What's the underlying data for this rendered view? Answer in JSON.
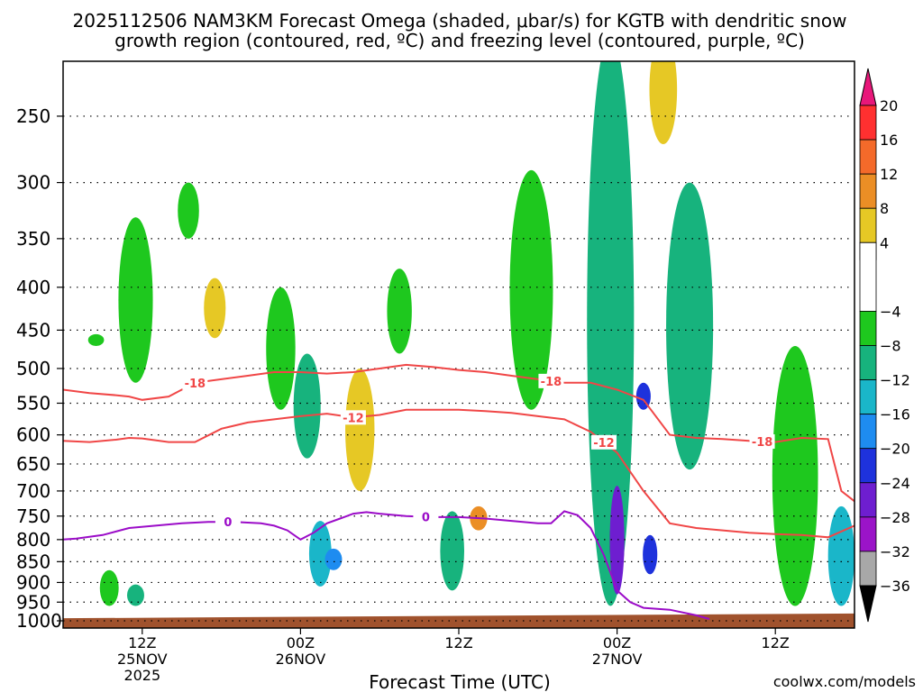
{
  "header": {
    "title_line1": "2025112506 NAM3KM Forecast Omega (shaded, μbar/s) for KGTB with dendritic snow",
    "title_line2": "growth region (contoured, red, ºC) and freezing level (contoured, purple, ºC)"
  },
  "footer": {
    "xlabel": "Forecast Time (UTC)",
    "credit": "coolwx.com/models",
    "credit_color": "#dc143c"
  },
  "chart_data": {
    "type": "heatmap",
    "title": "2025112506 NAM3KM Forecast Omega (shaded, μbar/s) for KGTB with dendritic snow growth region (contoured, red, ºC) and freezing level (contoured, purple, ºC)",
    "xlabel": "Forecast Time (UTC)",
    "ylabel": "",
    "x_start_hour": 0,
    "x_end_hour": 60,
    "y_axis_pressure_hPa": [
      250,
      300,
      350,
      400,
      450,
      500,
      550,
      600,
      650,
      700,
      750,
      800,
      850,
      900,
      950,
      1000
    ],
    "y_range_hPa": [
      1020,
      215
    ],
    "grid": "dotted horizontal",
    "x_ticks": [
      {
        "hour": 6,
        "line1": "12Z",
        "line2": "25NOV",
        "line3": "2025"
      },
      {
        "hour": 18,
        "line1": "00Z",
        "line2": "26NOV",
        "line3": ""
      },
      {
        "hour": 30,
        "line1": "12Z",
        "line2": "",
        "line3": ""
      },
      {
        "hour": 42,
        "line1": "00Z",
        "line2": "27NOV",
        "line3": ""
      },
      {
        "hour": 54,
        "line1": "12Z",
        "line2": "",
        "line3": ""
      }
    ],
    "colorbar": {
      "labels": [
        "20",
        "16",
        "12",
        "8",
        "4",
        "−4",
        "−8",
        "−12",
        "−16",
        "−20",
        "−24",
        "−28",
        "−32",
        "−36"
      ],
      "bins": [
        {
          "lo": 20,
          "hi": 24,
          "color": "#e8177a"
        },
        {
          "lo": 16,
          "hi": 20,
          "color": "#ff3030"
        },
        {
          "lo": 12,
          "hi": 16,
          "color": "#f46a2a"
        },
        {
          "lo": 8,
          "hi": 12,
          "color": "#eb8e25"
        },
        {
          "lo": 4,
          "hi": 8,
          "color": "#e6c825"
        },
        {
          "lo": 2,
          "hi": 4,
          "color": "#eae12f"
        },
        {
          "lo": -4,
          "hi": 4,
          "color": "#ffffff"
        },
        {
          "lo": -8,
          "hi": -4,
          "color": "#1ec81e"
        },
        {
          "lo": -12,
          "hi": -8,
          "color": "#17b37d"
        },
        {
          "lo": -16,
          "hi": -12,
          "color": "#1ab6c9"
        },
        {
          "lo": -20,
          "hi": -16,
          "color": "#1e8cf0"
        },
        {
          "lo": -24,
          "hi": -20,
          "color": "#1e32dc"
        },
        {
          "lo": -28,
          "hi": -24,
          "color": "#6e1ed0"
        },
        {
          "lo": -32,
          "hi": -28,
          "color": "#9b14c8"
        },
        {
          "lo": -36,
          "hi": -32,
          "color": "#a8a8a8"
        },
        {
          "lo": -40,
          "hi": -36,
          "color": "#000000"
        }
      ]
    },
    "omega_features": [
      {
        "hour": 2.5,
        "p_top": 455,
        "p_bot": 470,
        "value": -6
      },
      {
        "hour": 3.5,
        "p_top": 870,
        "p_bot": 960,
        "value": -6
      },
      {
        "hour": 5.5,
        "p_top": 330,
        "p_bot": 520,
        "value": -6
      },
      {
        "hour": 5.5,
        "p_top": 905,
        "p_bot": 960,
        "value": -9
      },
      {
        "hour": 9.5,
        "p_top": 300,
        "p_bot": 350,
        "value": -6
      },
      {
        "hour": 11.5,
        "p_top": 390,
        "p_bot": 460,
        "value": 5
      },
      {
        "hour": 16.5,
        "p_top": 400,
        "p_bot": 560,
        "value": -6
      },
      {
        "hour": 18.5,
        "p_top": 480,
        "p_bot": 640,
        "value": -10
      },
      {
        "hour": 19.5,
        "p_top": 760,
        "p_bot": 910,
        "value": -14
      },
      {
        "hour": 20.5,
        "p_top": 820,
        "p_bot": 870,
        "value": -18
      },
      {
        "hour": 22.5,
        "p_top": 500,
        "p_bot": 700,
        "value": 6
      },
      {
        "hour": 25.5,
        "p_top": 380,
        "p_bot": 480,
        "value": -6
      },
      {
        "hour": 29.5,
        "p_top": 740,
        "p_bot": 920,
        "value": -12
      },
      {
        "hour": 31.5,
        "p_top": 730,
        "p_bot": 780,
        "value": 8
      },
      {
        "hour": 35.5,
        "p_top": 290,
        "p_bot": 560,
        "value": -6
      },
      {
        "hour": 41.5,
        "p_top": 200,
        "p_bot": 960,
        "value": -12
      },
      {
        "hour": 42.0,
        "p_top": 720,
        "p_bot": 900,
        "value": -38
      },
      {
        "hour": 42.0,
        "p_top": 690,
        "p_bot": 930,
        "value": -26
      },
      {
        "hour": 44.0,
        "p_top": 520,
        "p_bot": 560,
        "value": -22
      },
      {
        "hour": 44.5,
        "p_top": 790,
        "p_bot": 880,
        "value": -22
      },
      {
        "hour": 45.5,
        "p_top": 200,
        "p_bot": 270,
        "value": 5
      },
      {
        "hour": 47.5,
        "p_top": 300,
        "p_bot": 660,
        "value": -9
      },
      {
        "hour": 55.5,
        "p_top": 470,
        "p_bot": 960,
        "value": -8
      },
      {
        "hour": 59.0,
        "p_top": 730,
        "p_bot": 960,
        "value": -16
      }
    ],
    "terrain": {
      "color": "#a0522d",
      "p_surface_start": 993,
      "p_surface_end": 980
    },
    "contours": [
      {
        "label": "-18",
        "color": "#f04646",
        "label_hours": [
          10.0,
          37.0,
          53.0
        ],
        "hours": [
          0,
          2,
          4,
          5,
          6,
          8,
          10,
          12,
          14,
          16,
          18,
          20,
          22,
          24,
          26,
          28,
          30,
          32,
          34,
          36,
          38,
          40,
          42,
          44,
          46,
          48,
          50,
          52,
          54,
          56,
          58,
          59,
          60
        ],
        "p_hPa": [
          530,
          535,
          538,
          540,
          545,
          540,
          520,
          515,
          510,
          505,
          505,
          507,
          505,
          500,
          495,
          498,
          502,
          505,
          510,
          515,
          520,
          520,
          530,
          545,
          600,
          605,
          607,
          610,
          612,
          605,
          607,
          700,
          720
        ]
      },
      {
        "label": "-12",
        "color": "#f04646",
        "label_hours": [
          22.0,
          41.0
        ],
        "hours": [
          0,
          2,
          4,
          5,
          6,
          8,
          10,
          12,
          14,
          16,
          18,
          20,
          22,
          24,
          26,
          28,
          30,
          32,
          34,
          36,
          38,
          40,
          42,
          44,
          46,
          48,
          50,
          52,
          54,
          56,
          58,
          60
        ],
        "p_hPa": [
          610,
          612,
          608,
          605,
          606,
          612,
          612,
          590,
          580,
          575,
          570,
          566,
          572,
          568,
          560,
          560,
          560,
          562,
          565,
          570,
          575,
          595,
          630,
          700,
          765,
          775,
          780,
          785,
          788,
          790,
          795,
          770
        ]
      },
      {
        "label": "0",
        "color": "#9b0cc8",
        "label_hours": [
          12.5,
          27.5
        ],
        "hours": [
          0,
          1,
          3,
          5,
          7,
          9,
          11,
          13,
          15,
          16,
          17,
          18,
          19,
          20,
          21,
          22,
          23,
          24,
          26,
          28,
          30,
          32,
          34,
          36,
          37,
          38,
          39,
          40,
          41,
          42,
          43,
          44,
          46,
          48,
          49
        ],
        "p_hPa": [
          800,
          798,
          790,
          775,
          770,
          765,
          762,
          762,
          765,
          770,
          780,
          800,
          785,
          765,
          755,
          745,
          742,
          745,
          750,
          752,
          752,
          755,
          760,
          765,
          765,
          740,
          748,
          775,
          835,
          920,
          950,
          965,
          970,
          985,
          995
        ]
      }
    ]
  }
}
